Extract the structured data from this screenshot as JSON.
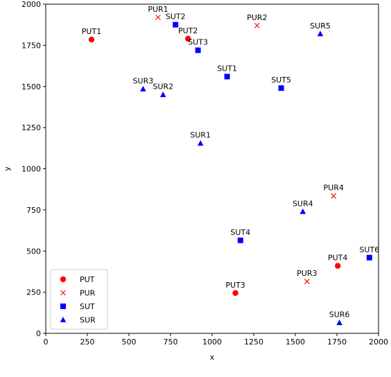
{
  "chart_data": {
    "type": "scatter",
    "title": "",
    "xlabel": "x",
    "ylabel": "y",
    "xlim": [
      0,
      2000
    ],
    "ylim": [
      0,
      2000
    ],
    "xticks": [
      0,
      250,
      500,
      750,
      1000,
      1250,
      1500,
      1750,
      2000
    ],
    "yticks": [
      0,
      250,
      500,
      750,
      1000,
      1250,
      1500,
      1750,
      2000
    ],
    "grid": false,
    "legend_position": "lower-left",
    "series": [
      {
        "name": "PUT",
        "marker": "circle",
        "color": "#ff0000",
        "points": [
          {
            "label": "PUT1",
            "x": 275,
            "y": 1785
          },
          {
            "label": "PUT2",
            "x": 855,
            "y": 1790
          },
          {
            "label": "PUT3",
            "x": 1140,
            "y": 245
          },
          {
            "label": "PUT4",
            "x": 1755,
            "y": 410
          }
        ]
      },
      {
        "name": "PUR",
        "marker": "x",
        "color": "#ff0000",
        "points": [
          {
            "label": "PUR1",
            "x": 675,
            "y": 1920
          },
          {
            "label": "PUR2",
            "x": 1270,
            "y": 1870
          },
          {
            "label": "PUR3",
            "x": 1570,
            "y": 315
          },
          {
            "label": "PUR4",
            "x": 1730,
            "y": 835
          }
        ]
      },
      {
        "name": "SUT",
        "marker": "square",
        "color": "#0000ff",
        "points": [
          {
            "label": "SUT1",
            "x": 1090,
            "y": 1560
          },
          {
            "label": "SUT2",
            "x": 780,
            "y": 1875
          },
          {
            "label": "SUT3",
            "x": 915,
            "y": 1720
          },
          {
            "label": "SUT4",
            "x": 1170,
            "y": 565
          },
          {
            "label": "SUT5",
            "x": 1415,
            "y": 1490
          },
          {
            "label": "SUT6",
            "x": 1945,
            "y": 460
          }
        ]
      },
      {
        "name": "SUR",
        "marker": "triangle",
        "color": "#0000ff",
        "points": [
          {
            "label": "SUR1",
            "x": 930,
            "y": 1155
          },
          {
            "label": "SUR2",
            "x": 705,
            "y": 1450
          },
          {
            "label": "SUR3",
            "x": 585,
            "y": 1485
          },
          {
            "label": "SUR4",
            "x": 1545,
            "y": 740
          },
          {
            "label": "SUR5",
            "x": 1650,
            "y": 1820
          },
          {
            "label": "SUR6",
            "x": 1765,
            "y": 65
          }
        ]
      }
    ]
  }
}
